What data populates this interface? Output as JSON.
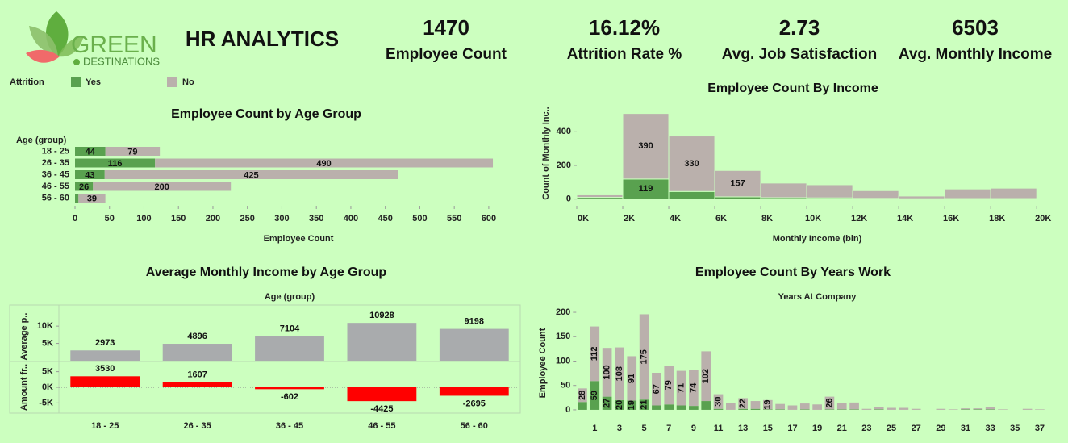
{
  "header": {
    "logo_text": "GREEN",
    "logo_subtext": "DESTINATIONS",
    "title": "HR ANALYTICS"
  },
  "kpis": [
    {
      "value": "1470",
      "label": "Employee Count"
    },
    {
      "value": "16.12%",
      "label": "Attrition Rate %"
    },
    {
      "value": "2.73",
      "label": "Avg. Job Satisfaction"
    },
    {
      "value": "6503",
      "label": "Avg. Monthly Income"
    }
  ],
  "legend": {
    "title": "Attrition"
  },
  "chart_data": [
    {
      "type": "hbar_stacked",
      "title": "Employee Count by Age Group",
      "y_label": "Age (group)",
      "x_label": "Employee Count",
      "categories": [
        "18 - 25",
        "26 - 35",
        "36 - 45",
        "46 - 55",
        "56 - 60"
      ],
      "series": [
        {
          "name": "Yes",
          "color": "#59a14f",
          "values": [
            44,
            116,
            43,
            26,
            5
          ]
        },
        {
          "name": "No",
          "color": "#bab0ac",
          "values": [
            79,
            490,
            425,
            200,
            39
          ]
        }
      ],
      "xlim": [
        0,
        620
      ],
      "xticks": [
        0,
        50,
        100,
        150,
        200,
        250,
        300,
        350,
        400,
        450,
        500,
        550,
        600
      ]
    },
    {
      "type": "histogram",
      "title": "Employee Count By Income",
      "x_label": "Monthly Income (bin)",
      "y_label": "Count of Monthly Inc..",
      "bins": [
        0,
        2000,
        4000,
        6000,
        8000,
        10000,
        12000,
        14000,
        16000,
        18000,
        20000
      ],
      "series": [
        {
          "color": "#59a14f",
          "values": [
            10,
            119,
            45,
            13,
            8,
            7,
            4,
            2,
            3,
            3
          ]
        },
        {
          "color": "#bab0ac",
          "values": [
            15,
            390,
            330,
            157,
            87,
            78,
            46,
            16,
            57,
            62
          ]
        }
      ],
      "xlim": [
        0,
        20800
      ],
      "xticks": [
        {
          "value": 0,
          "label": "0K"
        },
        {
          "value": 2000,
          "label": "2K"
        },
        {
          "value": 4000,
          "label": "4K"
        },
        {
          "value": 6000,
          "label": "6K"
        },
        {
          "value": 8000,
          "label": "8K"
        },
        {
          "value": 10000,
          "label": "10K"
        },
        {
          "value": 12000,
          "label": "12K"
        },
        {
          "value": 14000,
          "label": "14K"
        },
        {
          "value": 16000,
          "label": "16K"
        },
        {
          "value": 18000,
          "label": "18K"
        },
        {
          "value": 20000,
          "label": "20K"
        }
      ],
      "ylim": [
        -40,
        560
      ],
      "yticks": [
        0,
        200,
        400
      ]
    },
    {
      "type": "bar_panels",
      "title": "Average Monthly Income by Age Group",
      "x_label": "Age (group)",
      "categories": [
        "18 - 25",
        "26 - 35",
        "36 - 45",
        "46 - 55",
        "56 - 60"
      ],
      "panels": [
        {
          "y_label": "Average p..",
          "color": "#a9abad",
          "values": [
            2973,
            4896,
            7104,
            10928,
            9198
          ],
          "ylim": [
            0,
            14000
          ],
          "yticks": [
            {
              "value": 5000,
              "label": "5K"
            },
            {
              "value": 10000,
              "label": "10K"
            }
          ]
        },
        {
          "y_label": "Amount fr..",
          "color": "#ff0000",
          "values": [
            3530,
            1607,
            -602,
            -4425,
            -2695
          ],
          "ylim": [
            -8000,
            8000
          ],
          "yticks": [
            {
              "value": -5000,
              "label": "-5K"
            },
            {
              "value": 0,
              "label": "0K"
            },
            {
              "value": 5000,
              "label": "5K"
            }
          ]
        }
      ]
    },
    {
      "type": "bar_stacked",
      "title": "Employee Count By Years Work",
      "subtitle": "Years At Company",
      "y_label": "Employee Count",
      "categories": [
        null,
        "1",
        null,
        "3",
        null,
        "5",
        null,
        "7",
        null,
        "9",
        null,
        "11",
        null,
        "13",
        null,
        "15",
        null,
        "17",
        null,
        "19",
        null,
        "21",
        null,
        "23",
        null,
        "25",
        null,
        "27",
        null,
        "29",
        null,
        "31",
        null,
        "33",
        null,
        "35",
        null,
        "37"
      ],
      "series": [
        {
          "color": "#59a14f",
          "values": [
            16,
            59,
            27,
            20,
            19,
            21,
            9,
            11,
            9,
            8,
            18,
            2,
            0,
            2,
            2,
            1,
            1,
            0,
            1,
            0,
            1,
            1,
            1,
            0,
            1,
            0,
            0,
            0,
            0,
            0,
            0,
            1,
            1,
            1,
            0,
            0,
            0,
            0
          ]
        },
        {
          "color": "#bab0ac",
          "values": [
            28,
            112,
            100,
            108,
            91,
            175,
            67,
            79,
            71,
            74,
            102,
            30,
            14,
            22,
            16,
            19,
            11,
            9,
            12,
            11,
            26,
            13,
            14,
            2,
            5,
            4,
            4,
            2,
            0,
            2,
            1,
            2,
            2,
            4,
            1,
            0,
            2,
            1
          ]
        }
      ],
      "ylim": [
        -15,
        210
      ],
      "yticks": [
        0,
        50,
        100,
        150,
        200
      ]
    }
  ]
}
